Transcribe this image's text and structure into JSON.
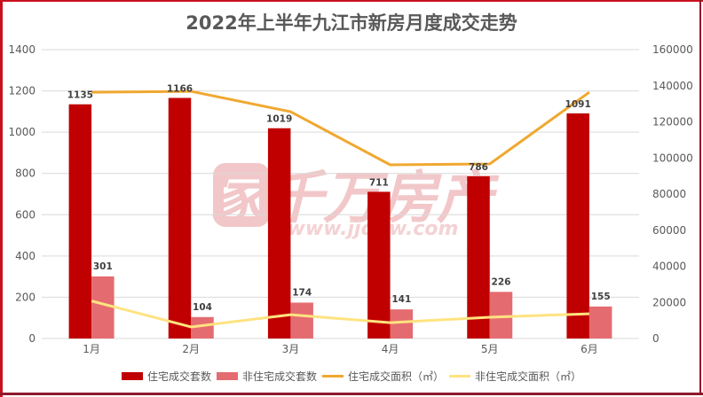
{
  "title": "2022年上半年九江市新房月度成交走势",
  "watermark": {
    "brand": "家千万房产",
    "url": "www.jjqgw.com"
  },
  "colors": {
    "border": "#c8101e",
    "residential_units": "#c00000",
    "non_residential_units": "#e46c70",
    "residential_area": "#f0a830",
    "non_residential_area": "#ffe380",
    "grid": "#d9d9d9",
    "text": "#595959"
  },
  "chart_data": {
    "type": "bar+line",
    "title": "2022年上半年九江市新房月度成交走势",
    "categories": [
      "1月",
      "2月",
      "3月",
      "4月",
      "5月",
      "6月"
    ],
    "y_left": {
      "ticks": [
        0,
        200,
        400,
        600,
        800,
        1000,
        1200,
        1400
      ],
      "range": [
        0,
        1400
      ]
    },
    "y_right": {
      "ticks": [
        0,
        20000,
        40000,
        60000,
        80000,
        100000,
        120000,
        140000,
        160000
      ],
      "range": [
        0,
        160000
      ]
    },
    "grid": true,
    "legend_position": "bottom",
    "series": [
      {
        "name": "住宅成交套数",
        "type": "bar",
        "axis": "left",
        "values": [
          1135,
          1166,
          1019,
          711,
          786,
          1091
        ],
        "labels": [
          "1135",
          "1166",
          "1019",
          "711",
          "786",
          "1091"
        ]
      },
      {
        "name": "非住宅成交套数",
        "type": "bar",
        "axis": "left",
        "values": [
          301,
          104,
          174,
          141,
          226,
          155
        ],
        "labels": [
          "301",
          "104",
          "174",
          "141",
          "226",
          "155"
        ]
      },
      {
        "name": "住宅成交面积（㎡）",
        "type": "line",
        "axis": "right",
        "values": [
          136400,
          136900,
          125600,
          96200,
          96700,
          136400
        ]
      },
      {
        "name": "非住宅成交面积（㎡）",
        "type": "line",
        "axis": "right",
        "values": [
          20800,
          6400,
          13200,
          8800,
          11800,
          13700
        ]
      }
    ]
  },
  "legend": [
    {
      "label": "住宅成交套数",
      "kind": "bar",
      "color": "#c00000"
    },
    {
      "label": "非住宅成交套数",
      "kind": "bar",
      "color": "#e46c70"
    },
    {
      "label": "住宅成交面积（㎡）",
      "kind": "line",
      "color": "#f0a830"
    },
    {
      "label": "非住宅成交面积（㎡）",
      "kind": "line",
      "color": "#ffe380"
    }
  ]
}
